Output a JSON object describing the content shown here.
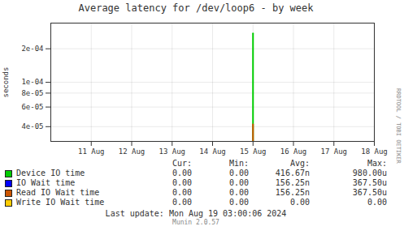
{
  "chart_data": {
    "type": "line",
    "title": "Average latency for /dev/loop6 - by week",
    "ylabel": "seconds",
    "log": "y",
    "grid": true,
    "x": [
      5.0,
      5.0
    ],
    "xlim": [
      0,
      8
    ],
    "xticks": [
      {
        "value": 1,
        "label": "11 Aug"
      },
      {
        "value": 2,
        "label": "12 Aug"
      },
      {
        "value": 3,
        "label": "13 Aug"
      },
      {
        "value": 4,
        "label": "14 Aug"
      },
      {
        "value": 5,
        "label": "15 Aug"
      },
      {
        "value": 6,
        "label": "16 Aug"
      },
      {
        "value": 7,
        "label": "17 Aug"
      },
      {
        "value": 8,
        "label": "18 Aug"
      }
    ],
    "ylim": [
      2.95e-05,
      0.00034
    ],
    "yticks": [
      {
        "value": 4e-05,
        "label": "4e-05"
      },
      {
        "value": 6e-05,
        "label": "6e-05"
      },
      {
        "value": 8e-05,
        "label": "8e-05"
      },
      {
        "value": 0.0001,
        "label": "1e-04"
      },
      {
        "value": 0.0002,
        "label": "2e-04"
      }
    ],
    "series": [
      {
        "name": "Device IO time",
        "color": "#00cc00",
        "values": [
          2.95e-05,
          0.000275
        ]
      },
      {
        "name": "IO Wait time",
        "color": "#0000ff",
        "values": [
          null,
          null
        ]
      },
      {
        "name": "Read IO Wait time",
        "color": "#cc5500",
        "values": [
          2.95e-05,
          4.2e-05
        ]
      },
      {
        "name": "Write IO Wait time",
        "color": "#ffcc00",
        "values": [
          null,
          null
        ]
      }
    ],
    "table_headers": [
      "Cur:",
      "Min:",
      "Avg:",
      "Max:"
    ],
    "table_rows": [
      [
        "0.00",
        "0.00",
        "416.67n",
        "980.00u"
      ],
      [
        "0.00",
        "0.00",
        "156.25n",
        "367.50u"
      ],
      [
        "0.00",
        "0.00",
        "156.25n",
        "367.50u"
      ],
      [
        "0.00",
        "0.00",
        "0.00",
        "0.00"
      ]
    ],
    "last_update": "Last update: Mon Aug 19 03:00:06 2024",
    "watermark": "Munin 2.0.57",
    "side_label": "RRDTOOL / TOBI OETIKER"
  }
}
